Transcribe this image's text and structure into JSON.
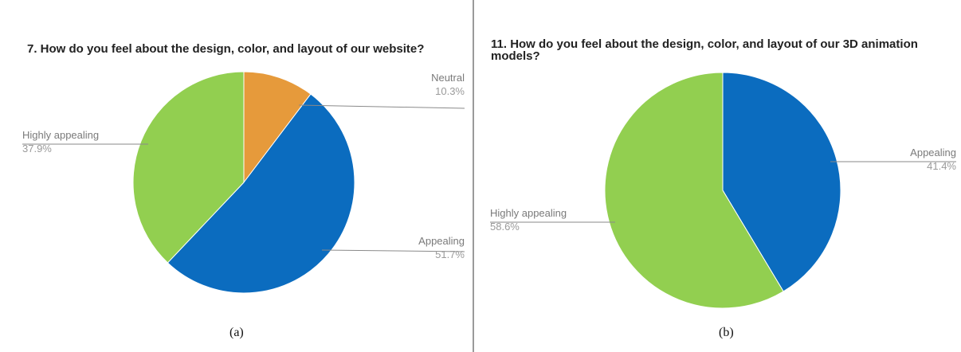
{
  "chart_data": [
    {
      "type": "pie",
      "title": "7. How do you feel about the design, color, and layout of our website?",
      "caption": "(a)",
      "slices": [
        {
          "label": "Neutral",
          "value": 10.3,
          "display": "10.3%",
          "color": "#e69a3b"
        },
        {
          "label": "Appealing",
          "value": 51.7,
          "display": "51.7%",
          "color": "#0b6cbf"
        },
        {
          "label": "Highly appealing",
          "value": 37.9,
          "display": "37.9%",
          "color": "#92cf50"
        }
      ]
    },
    {
      "type": "pie",
      "title": "11. How do you feel about the design, color, and layout of our 3D animation models?",
      "caption": "(b)",
      "slices": [
        {
          "label": "Appealing",
          "value": 41.4,
          "display": "41.4%",
          "color": "#0b6cbf"
        },
        {
          "label": "Highly appealing",
          "value": 58.6,
          "display": "58.6%",
          "color": "#92cf50"
        }
      ]
    }
  ]
}
